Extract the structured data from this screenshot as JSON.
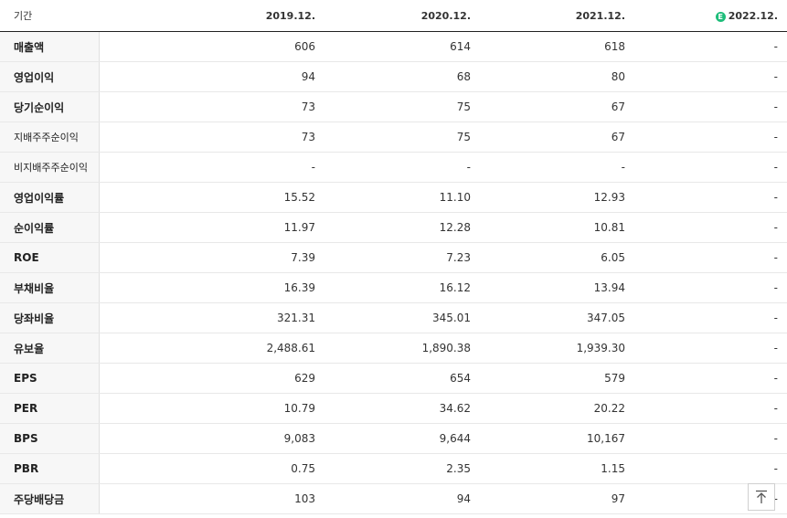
{
  "table": {
    "header_label": "기간",
    "columns": [
      "2019.12.",
      "2020.12.",
      "2021.12.",
      "2022.12."
    ],
    "estimate_badge": "E",
    "rows": [
      {
        "label": "매출액",
        "values": [
          "606",
          "614",
          "618",
          "-"
        ],
        "small": false,
        "group_start": false
      },
      {
        "label": "영업이익",
        "values": [
          "94",
          "68",
          "80",
          "-"
        ],
        "small": false,
        "group_start": false
      },
      {
        "label": "당기순이익",
        "values": [
          "73",
          "75",
          "67",
          "-"
        ],
        "small": false,
        "group_start": false
      },
      {
        "label": "지배주주순이익",
        "values": [
          "73",
          "75",
          "67",
          "-"
        ],
        "small": true,
        "group_start": false
      },
      {
        "label": "비지배주주순이익",
        "values": [
          "-",
          "-",
          "-",
          "-"
        ],
        "small": true,
        "group_start": false
      },
      {
        "label": "영업이익률",
        "values": [
          "15.52",
          "11.10",
          "12.93",
          "-"
        ],
        "small": false,
        "group_start": true
      },
      {
        "label": "순이익률",
        "values": [
          "11.97",
          "12.28",
          "10.81",
          "-"
        ],
        "small": false,
        "group_start": false
      },
      {
        "label": "ROE",
        "values": [
          "7.39",
          "7.23",
          "6.05",
          "-"
        ],
        "small": false,
        "group_start": false
      },
      {
        "label": "부채비율",
        "values": [
          "16.39",
          "16.12",
          "13.94",
          "-"
        ],
        "small": false,
        "group_start": true
      },
      {
        "label": "당좌비율",
        "values": [
          "321.31",
          "345.01",
          "347.05",
          "-"
        ],
        "small": false,
        "group_start": false
      },
      {
        "label": "유보율",
        "values": [
          "2,488.61",
          "1,890.38",
          "1,939.30",
          "-"
        ],
        "small": false,
        "group_start": false
      },
      {
        "label": "EPS",
        "values": [
          "629",
          "654",
          "579",
          "-"
        ],
        "small": false,
        "group_start": true
      },
      {
        "label": "PER",
        "values": [
          "10.79",
          "34.62",
          "20.22",
          "-"
        ],
        "small": false,
        "group_start": false
      },
      {
        "label": "BPS",
        "values": [
          "9,083",
          "9,644",
          "10,167",
          "-"
        ],
        "small": false,
        "group_start": false
      },
      {
        "label": "PBR",
        "values": [
          "0.75",
          "2.35",
          "1.15",
          "-"
        ],
        "small": false,
        "group_start": false
      },
      {
        "label": "주당배당금",
        "values": [
          "103",
          "94",
          "97",
          "-"
        ],
        "small": false,
        "group_start": true
      }
    ]
  },
  "scroll_top_icon": "arrow-up-to-top-icon",
  "colors": {
    "estimate": "#1ebd7a"
  }
}
